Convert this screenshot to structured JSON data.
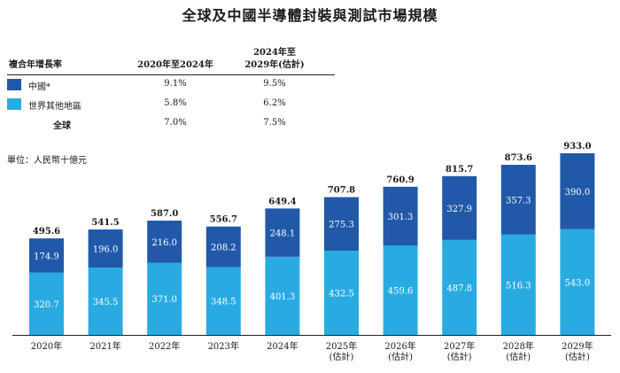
{
  "title": "全球及中國半導體封裝與測試市場規模",
  "cagr_table": {
    "header_label": "複合年增長率",
    "col1": "2020年至2024年",
    "col2_line1": "2024年至",
    "col2_line2": "2029年(估計)",
    "rows": [
      {
        "label": "中國*",
        "color": "#2159a8",
        "v1": "9.1%",
        "v2": "9.5%"
      },
      {
        "label": "世界其他地區",
        "color": "#29abe2",
        "v1": "5.8%",
        "v2": "6.2%"
      },
      {
        "label": "全球",
        "color": "",
        "v1": "7.0%",
        "v2": "7.5%"
      }
    ]
  },
  "unit": "單位：人民幣十億元",
  "chart_data": {
    "type": "bar",
    "stacked": true,
    "ylim": [
      0,
      933.0
    ],
    "categories": [
      [
        "2020年"
      ],
      [
        "2021年"
      ],
      [
        "2022年"
      ],
      [
        "2023年"
      ],
      [
        "2024年"
      ],
      [
        "2025年",
        "(估計)"
      ],
      [
        "2026年",
        "(估計)"
      ],
      [
        "2027年",
        "(估計)"
      ],
      [
        "2028年",
        "(估計)"
      ],
      [
        "2029年",
        "(估計)"
      ]
    ],
    "series": [
      {
        "name": "世界其他地區",
        "color": "#29abe2",
        "values": [
          320.7,
          345.5,
          371.0,
          348.5,
          401.3,
          432.5,
          459.6,
          487.8,
          516.3,
          543.0
        ]
      },
      {
        "name": "中國*",
        "color": "#2159a8",
        "values": [
          174.9,
          196.0,
          216.0,
          208.2,
          248.1,
          275.3,
          301.3,
          327.9,
          357.3,
          390.0
        ]
      }
    ],
    "totals": [
      495.6,
      541.5,
      587.0,
      556.7,
      649.4,
      707.8,
      760.9,
      815.7,
      873.6,
      933.0
    ],
    "series_labels": [
      [
        "320.7",
        "345.5",
        "371.0",
        "348.5",
        "401.3",
        "432.5",
        "459.6",
        "487.8",
        "516.3",
        "543.0"
      ],
      [
        "174.9",
        "196.0",
        "216.0",
        "208.2",
        "248.1",
        "275.3",
        "301.3",
        "327.9",
        "357.3",
        "390.0"
      ]
    ],
    "total_labels": [
      "495.6",
      "541.5",
      "587.0",
      "556.7",
      "649.4",
      "707.8",
      "760.9",
      "815.7",
      "873.6",
      "933.0"
    ]
  }
}
